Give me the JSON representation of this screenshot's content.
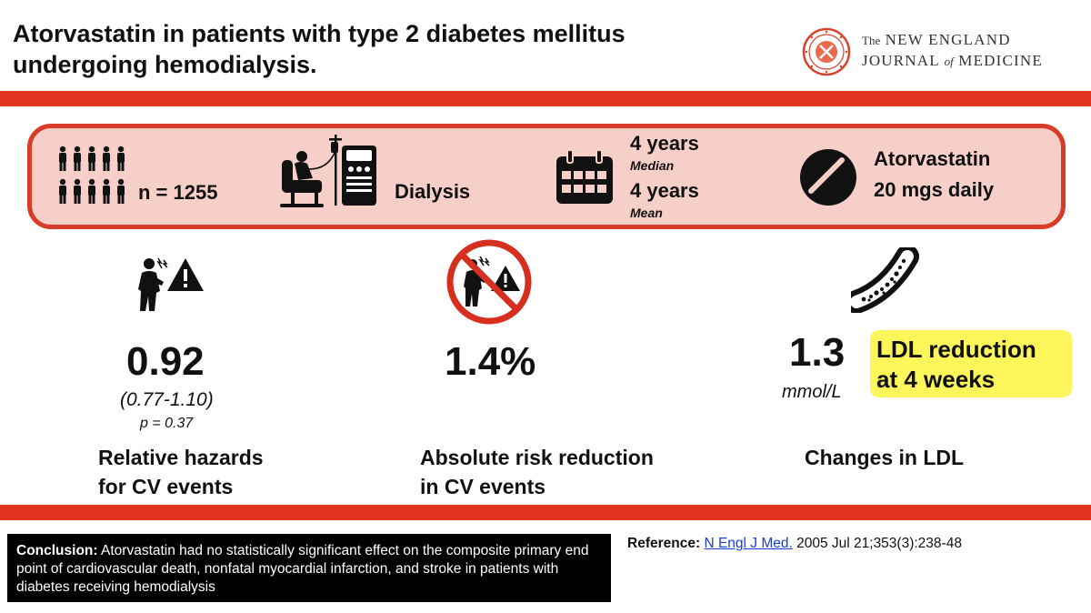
{
  "header": {
    "title_line1": "Atorvastatin in patients with type 2 diabetes mellitus",
    "title_line2": "undergoing hemodialysis.",
    "journal_the": "The",
    "journal_name_line1": "NEW ENGLAND",
    "journal_name_line2a": "JOURNAL",
    "journal_of": "of",
    "journal_name_line2b": "MEDICINE"
  },
  "stats": {
    "patients": {
      "icon": "people-group-icon",
      "label": "n = 1255"
    },
    "treatment_setting": {
      "icon": "dialysis-machine-icon",
      "label": "Dialysis"
    },
    "follow_up": {
      "icon": "calendar-icon",
      "median_value": "4 years",
      "median_label": "Median",
      "mean_value": "4 years",
      "mean_label": "Mean"
    },
    "drug": {
      "icon": "pill-icon",
      "line1": "Atorvastatin",
      "line2": "20 mgs daily"
    }
  },
  "outcomes": {
    "relative_hazards": {
      "icon": "chest-pain-warning-icon",
      "value": "0.92",
      "ci": "(0.77-1.10)",
      "p_value": "p = 0.37",
      "caption_line1": "Relative hazards",
      "caption_line2": "for CV events"
    },
    "absolute_risk": {
      "icon": "no-chest-pain-icon",
      "value": "1.4%",
      "caption_line1": "Absolute risk reduction",
      "caption_line2": "in CV events"
    },
    "ldl": {
      "icon": "artery-plaque-icon",
      "value": "1.3",
      "unit": "mmol/L",
      "highlight_line1": "LDL reduction",
      "highlight_line2": "at 4 weeks",
      "caption": "Changes in LDL"
    }
  },
  "footer": {
    "conclusion_label": "Conclusion:",
    "conclusion_text": "Atorvastatin had no statistically significant effect on the composite primary end point of cardiovascular death, nonfatal myocardial infarction, and stroke in patients with diabetes receiving hemodialysis",
    "reference_label": "Reference:",
    "reference_link": "N Engl J Med.",
    "reference_citation": "2005 Jul 21;353(3):238-48"
  },
  "colors": {
    "accent_red": "#e3331e",
    "box_fill": "#f6cfc9",
    "highlight_yellow": "#fcf65a",
    "link_blue": "#1a3fd9"
  }
}
